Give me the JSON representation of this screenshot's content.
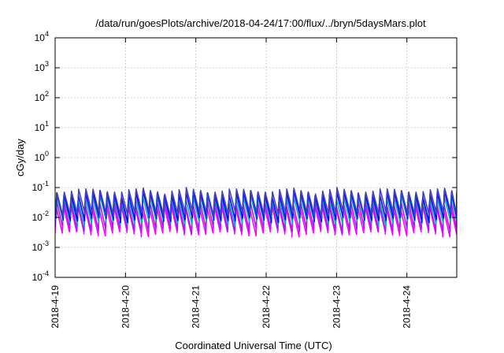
{
  "chart_data": {
    "type": "line",
    "title": "/data/run/goesPlots/archive/2018-04-24/17:00/flux/../bryn/5daysMars.plot",
    "xlabel": "Coordinated Universal Time (UTC)",
    "ylabel": "cGy/day",
    "yscale": "log",
    "ylim": [
      0.0001,
      10000
    ],
    "xlim": [
      "2018-04-19T00:00",
      "2018-04-24T17:00"
    ],
    "x_tick_labels": [
      "2018-4-19",
      "2018-4-20",
      "2018-4-21",
      "2018-4-22",
      "2018-4-23",
      "2018-4-24"
    ],
    "y_ticks": [
      {
        "base": "10",
        "exp": "-4"
      },
      {
        "base": "10",
        "exp": "-3"
      },
      {
        "base": "10",
        "exp": "-2"
      },
      {
        "base": "10",
        "exp": "-1"
      },
      {
        "base": "10",
        "exp": "0"
      },
      {
        "base": "10",
        "exp": "1"
      },
      {
        "base": "10",
        "exp": "2"
      },
      {
        "base": "10",
        "exp": "3"
      },
      {
        "base": "10",
        "exp": "4"
      }
    ],
    "grid": true,
    "pattern": "sawtooth, period ~0.1 day, each cycle a sharp rise to a peak followed by decay",
    "series": [
      {
        "color": "#ff00ff",
        "peak": 0.025,
        "trough": 0.003
      },
      {
        "color": "#a020f0",
        "peak": 0.035,
        "trough": 0.004
      },
      {
        "color": "#00b0b0",
        "peak": 0.05,
        "trough": 0.007
      },
      {
        "color": "#0000ff",
        "peak": 0.065,
        "trough": 0.009
      },
      {
        "color": "#4040c0",
        "peak": 0.08,
        "trough": 0.012
      }
    ]
  }
}
